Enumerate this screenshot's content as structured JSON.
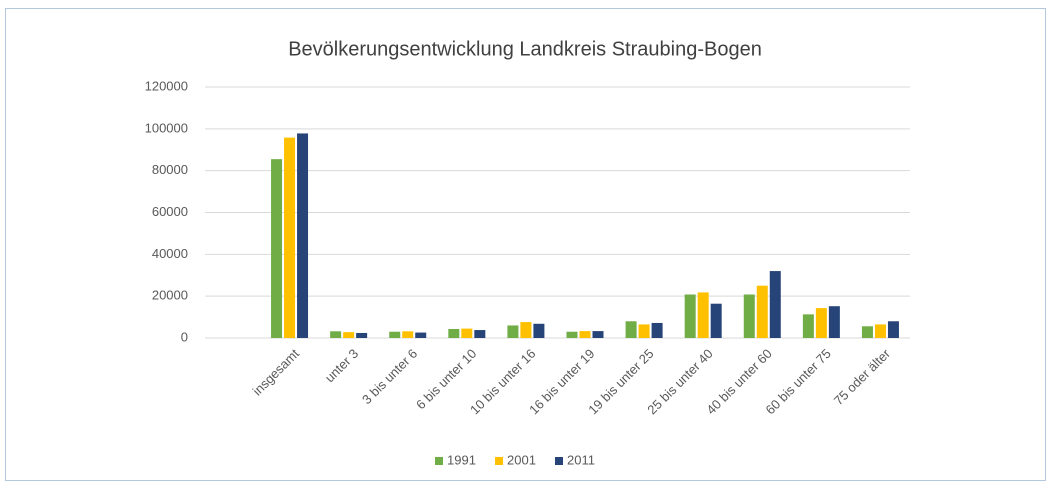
{
  "chart_data": {
    "type": "bar",
    "title": "Bevölkerungsentwicklung Landkreis Straubing-Bogen",
    "categories": [
      "insgesamt",
      "unter 3",
      "3 bis unter 6",
      "6 bis unter 10",
      "10 bis unter 16",
      "16 bis unter 19",
      "19 bis unter 25",
      "25 bis unter 40",
      "40 bis unter 60",
      "60 bis unter 75",
      "75 oder älter"
    ],
    "series": [
      {
        "name": "1991",
        "color": "#70ad47",
        "values": [
          85500,
          3200,
          3000,
          4300,
          6000,
          3000,
          8000,
          20800,
          20800,
          11300,
          5600
        ]
      },
      {
        "name": "2001",
        "color": "#ffc000",
        "values": [
          95800,
          2800,
          3200,
          4500,
          7600,
          3300,
          6500,
          21800,
          25000,
          14300,
          6500
        ]
      },
      {
        "name": "2011",
        "color": "#264478",
        "values": [
          97800,
          2400,
          2600,
          3800,
          6800,
          3300,
          7200,
          16400,
          32000,
          15200,
          8000
        ]
      }
    ],
    "ylim": [
      0,
      120000
    ],
    "yticks": [
      0,
      20000,
      40000,
      60000,
      80000,
      100000,
      120000
    ],
    "grid": true,
    "legend": "bottom"
  }
}
